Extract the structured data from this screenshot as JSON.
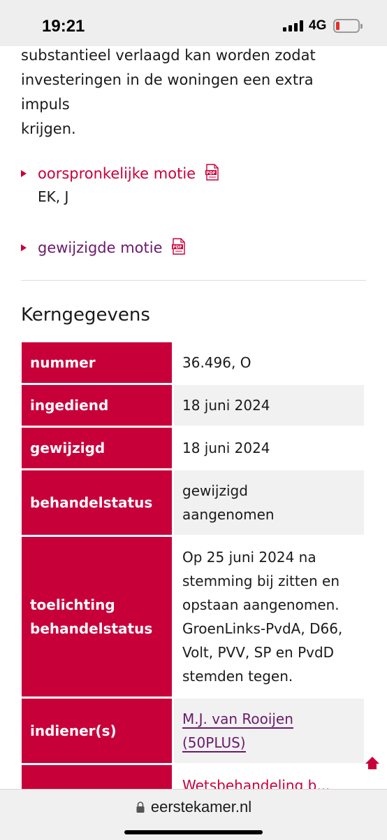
{
  "status_bar": {
    "time": "19:21",
    "network": "4G",
    "battery_color": "#e0322b"
  },
  "intro_text": [
    "substantieel verlaagd kan worden zodat",
    "investeringen in de woningen een extra impuls",
    "krijgen."
  ],
  "documents": [
    {
      "label": "oorspronkelijke motie",
      "meta": "EK, J"
    },
    {
      "label": "gewijzigde motie"
    }
  ],
  "section_title": "Kerngegevens",
  "kerngegevens": [
    {
      "label": "nummer",
      "value": "36.496, O"
    },
    {
      "label": "ingediend",
      "value": "18 juni 2024"
    },
    {
      "label": "gewijzigd",
      "value": "18 juni 2024"
    },
    {
      "label": "behandelstatus",
      "value_lines": [
        "gewijzigd",
        "aangenomen"
      ]
    },
    {
      "label_lines": [
        "toelichting",
        "behandelstatus"
      ],
      "value_lines": [
        "Op 25 juni 2024 na",
        "stemming bij zitten en",
        "opstaan aangenomen.",
        "GroenLinks-PvdA, D66,",
        "Volt, PVV, SP en PvdD",
        "stemden tegen."
      ]
    },
    {
      "label": "indiener(s)",
      "link_lines": [
        "M.J. van Rooijen",
        "(50PLUS)"
      ]
    },
    {
      "partial_value": "Wetsbehandeling b..."
    }
  ],
  "bottom_bar": {
    "url": "eerstekamer.nl"
  },
  "colors": {
    "accent": "#c8003a",
    "visited_link": "#6b1a6b"
  },
  "icons": {
    "pdf": "pdf-icon",
    "lock": "lock-icon",
    "scroll_top": "arrow-up-icon"
  }
}
